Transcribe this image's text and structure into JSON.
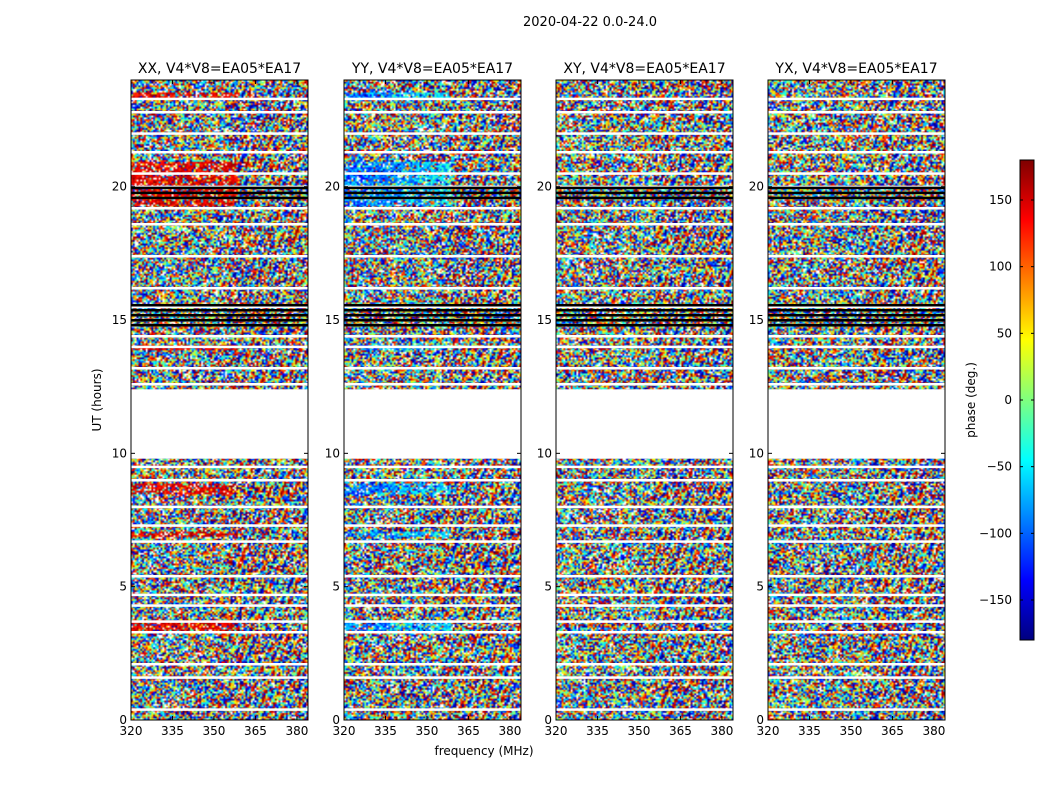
{
  "chart_data": {
    "type": "heatmap",
    "suptitle": "2020-04-22 0.0-24.0",
    "xlabel": "frequency (MHz)",
    "ylabel": "UT (hours)",
    "xlim": [
      320,
      384
    ],
    "ylim": [
      0,
      24
    ],
    "xticks": [
      320,
      335,
      350,
      365,
      380
    ],
    "yticks": [
      0,
      5,
      10,
      15,
      20
    ],
    "panels": [
      {
        "title": "XX, V4*V8=EA05*EA17",
        "band_hue": "red"
      },
      {
        "title": "YY, V4*V8=EA05*EA17",
        "band_hue": "blue"
      },
      {
        "title": "XY, V4*V8=EA05*EA17",
        "band_hue": "none"
      },
      {
        "title": "YX, V4*V8=EA05*EA17",
        "band_hue": "none"
      }
    ],
    "no_data_ut_ranges": [
      [
        9.8,
        12.4
      ]
    ],
    "flagged_ut_rows": [
      0.4,
      1.6,
      2.1,
      3.3,
      3.7,
      4.3,
      4.7,
      5.4,
      6.7,
      7.3,
      8.0,
      9.0,
      9.5,
      12.6,
      13.2,
      14.0,
      14.4,
      15.0,
      15.5,
      16.2,
      17.4,
      18.6,
      19.2,
      20.0,
      20.5,
      21.3,
      22.0,
      22.8,
      23.3
    ],
    "dense_flag_ut_ranges": [
      [
        14.7,
        15.6
      ],
      [
        19.6,
        20.0
      ]
    ],
    "colorbar": {
      "label": "phase (deg.)",
      "range": [
        -180,
        180
      ],
      "ticks": [
        150,
        100,
        50,
        0,
        -50,
        -100,
        -150
      ],
      "tick_labels": [
        "150",
        "100",
        "50",
        "0",
        "−50",
        "−100",
        "−150"
      ],
      "colormap": [
        "#00007f",
        "#0000ff",
        "#007fff",
        "#00ffff",
        "#7fff7f",
        "#ffff00",
        "#ff7f00",
        "#ff0000",
        "#7f0000"
      ]
    }
  }
}
